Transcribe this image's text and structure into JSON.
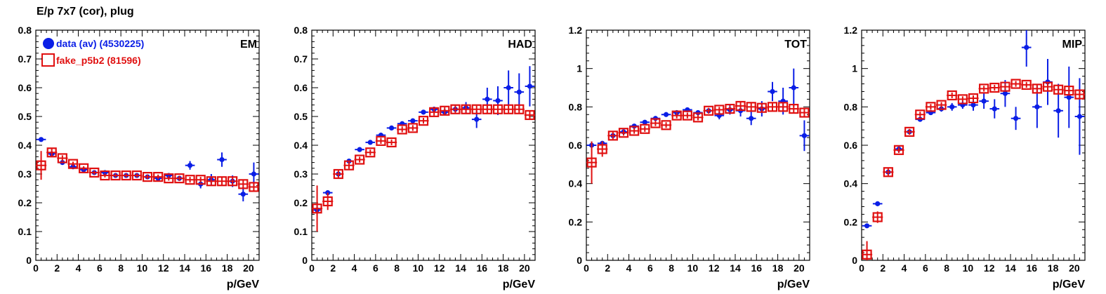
{
  "page": {
    "title": "E/p 7x7 (cor), plug"
  },
  "legend": {
    "entries": [
      {
        "label": "data (av) (4530225)",
        "color": "#0a1ee6",
        "marker": "filled-circle"
      },
      {
        "label": "fake_p5b2 (81596)",
        "color": "#e01010",
        "marker": "open-square"
      }
    ]
  },
  "chart_data": [
    {
      "type": "scatter",
      "title": "EM",
      "xlabel": "p/GeV",
      "ylabel": "",
      "xlim": [
        0,
        21
      ],
      "ylim": [
        0,
        0.8
      ],
      "xticks": [
        "0",
        "2",
        "4",
        "6",
        "8",
        "10",
        "12",
        "14",
        "16",
        "18",
        "20"
      ],
      "yticks": [
        "0",
        "0.1",
        "0.2",
        "0.3",
        "0.4",
        "0.5",
        "0.6",
        "0.7",
        "0.8"
      ],
      "series": [
        {
          "name": "data (av) (4530225)",
          "color": "#0a1ee6",
          "x": [
            0.5,
            1.5,
            2.5,
            3.5,
            4.5,
            5.5,
            6.5,
            7.5,
            8.5,
            9.5,
            10.5,
            11.5,
            12.5,
            13.5,
            14.5,
            15.5,
            16.5,
            17.5,
            18.5,
            19.5,
            20.5
          ],
          "y": [
            0.42,
            0.37,
            0.34,
            0.325,
            0.315,
            0.305,
            0.305,
            0.295,
            0.295,
            0.295,
            0.29,
            0.285,
            0.295,
            0.285,
            0.33,
            0.265,
            0.28,
            0.35,
            0.275,
            0.23,
            0.3
          ],
          "yerr": [
            0.005,
            0.005,
            0.004,
            0.004,
            0.004,
            0.004,
            0.004,
            0.004,
            0.004,
            0.005,
            0.005,
            0.005,
            0.006,
            0.007,
            0.015,
            0.015,
            0.02,
            0.025,
            0.02,
            0.025,
            0.04
          ]
        },
        {
          "name": "fake_p5b2 (81596)",
          "color": "#e01010",
          "x": [
            0.5,
            1.5,
            2.5,
            3.5,
            4.5,
            5.5,
            6.5,
            7.5,
            8.5,
            9.5,
            10.5,
            11.5,
            12.5,
            13.5,
            14.5,
            15.5,
            16.5,
            17.5,
            18.5,
            19.5,
            20.5
          ],
          "y": [
            0.33,
            0.375,
            0.355,
            0.335,
            0.32,
            0.305,
            0.295,
            0.295,
            0.295,
            0.295,
            0.29,
            0.29,
            0.285,
            0.285,
            0.28,
            0.28,
            0.275,
            0.275,
            0.275,
            0.265,
            0.255
          ],
          "yerr": [
            0.05,
            0.015,
            0.01,
            0.008,
            0.007,
            0.007,
            0.007,
            0.007,
            0.007,
            0.007,
            0.008,
            0.008,
            0.008,
            0.009,
            0.01,
            0.01,
            0.012,
            0.013,
            0.014,
            0.015,
            0.017
          ]
        }
      ]
    },
    {
      "type": "scatter",
      "title": "HAD",
      "xlabel": "p/GeV",
      "ylabel": "",
      "xlim": [
        0,
        21
      ],
      "ylim": [
        0,
        0.8
      ],
      "xticks": [
        "0",
        "2",
        "4",
        "6",
        "8",
        "10",
        "12",
        "14",
        "16",
        "18",
        "20"
      ],
      "yticks": [
        "0",
        "0.1",
        "0.2",
        "0.3",
        "0.4",
        "0.5",
        "0.6",
        "0.7",
        "0.8"
      ],
      "series": [
        {
          "name": "data (av) (4530225)",
          "color": "#0a1ee6",
          "x": [
            0.5,
            1.5,
            2.5,
            3.5,
            4.5,
            5.5,
            6.5,
            7.5,
            8.5,
            9.5,
            10.5,
            11.5,
            12.5,
            13.5,
            14.5,
            15.5,
            16.5,
            17.5,
            18.5,
            19.5,
            20.5
          ],
          "y": [
            0.175,
            0.235,
            0.3,
            0.345,
            0.385,
            0.41,
            0.435,
            0.46,
            0.475,
            0.485,
            0.515,
            0.525,
            0.515,
            0.525,
            0.53,
            0.49,
            0.56,
            0.555,
            0.6,
            0.585,
            0.605
          ],
          "yerr": [
            0.015,
            0.008,
            0.006,
            0.005,
            0.005,
            0.005,
            0.005,
            0.006,
            0.006,
            0.007,
            0.008,
            0.009,
            0.01,
            0.015,
            0.02,
            0.03,
            0.04,
            0.05,
            0.06,
            0.065,
            0.07
          ]
        },
        {
          "name": "fake_p5b2 (81596)",
          "color": "#e01010",
          "x": [
            0.5,
            1.5,
            2.5,
            3.5,
            4.5,
            5.5,
            6.5,
            7.5,
            8.5,
            9.5,
            10.5,
            11.5,
            12.5,
            13.5,
            14.5,
            15.5,
            16.5,
            17.5,
            18.5,
            19.5,
            20.5
          ],
          "y": [
            0.18,
            0.205,
            0.3,
            0.33,
            0.35,
            0.375,
            0.415,
            0.41,
            0.455,
            0.46,
            0.485,
            0.515,
            0.52,
            0.525,
            0.525,
            0.525,
            0.525,
            0.525,
            0.525,
            0.525,
            0.505
          ],
          "yerr": [
            0.08,
            0.03,
            0.015,
            0.012,
            0.01,
            0.01,
            0.01,
            0.01,
            0.01,
            0.01,
            0.01,
            0.012,
            0.012,
            0.012,
            0.012,
            0.012,
            0.014,
            0.014,
            0.014,
            0.014,
            0.015
          ]
        }
      ]
    },
    {
      "type": "scatter",
      "title": "TOT",
      "xlabel": "p/GeV",
      "ylabel": "",
      "xlim": [
        0,
        21
      ],
      "ylim": [
        0,
        1.2
      ],
      "xticks": [
        "0",
        "2",
        "4",
        "6",
        "8",
        "10",
        "12",
        "14",
        "16",
        "18",
        "20"
      ],
      "yticks": [
        "0",
        "0.2",
        "0.4",
        "0.6",
        "0.8",
        "1",
        "1.2"
      ],
      "series": [
        {
          "name": "data (av) (4530225)",
          "color": "#0a1ee6",
          "x": [
            0.5,
            1.5,
            2.5,
            3.5,
            4.5,
            5.5,
            6.5,
            7.5,
            8.5,
            9.5,
            10.5,
            11.5,
            12.5,
            13.5,
            14.5,
            15.5,
            16.5,
            17.5,
            18.5,
            19.5,
            20.5
          ],
          "y": [
            0.6,
            0.61,
            0.65,
            0.67,
            0.7,
            0.72,
            0.74,
            0.76,
            0.77,
            0.785,
            0.77,
            0.78,
            0.755,
            0.785,
            0.78,
            0.74,
            0.79,
            0.88,
            0.83,
            0.9,
            0.65
          ],
          "yerr": [
            0.01,
            0.008,
            0.006,
            0.006,
            0.006,
            0.006,
            0.006,
            0.007,
            0.008,
            0.009,
            0.01,
            0.012,
            0.02,
            0.025,
            0.03,
            0.035,
            0.04,
            0.05,
            0.07,
            0.1,
            0.08
          ]
        },
        {
          "name": "fake_p5b2 (81596)",
          "color": "#e01010",
          "x": [
            0.5,
            1.5,
            2.5,
            3.5,
            4.5,
            5.5,
            6.5,
            7.5,
            8.5,
            9.5,
            10.5,
            11.5,
            12.5,
            13.5,
            14.5,
            15.5,
            16.5,
            17.5,
            18.5,
            19.5,
            20.5
          ],
          "y": [
            0.51,
            0.58,
            0.65,
            0.665,
            0.675,
            0.685,
            0.715,
            0.705,
            0.755,
            0.755,
            0.745,
            0.78,
            0.785,
            0.79,
            0.805,
            0.8,
            0.795,
            0.8,
            0.8,
            0.79,
            0.77
          ],
          "yerr": [
            0.11,
            0.04,
            0.02,
            0.015,
            0.015,
            0.015,
            0.015,
            0.015,
            0.015,
            0.015,
            0.015,
            0.015,
            0.015,
            0.015,
            0.02,
            0.02,
            0.02,
            0.02,
            0.02,
            0.02,
            0.02
          ]
        }
      ]
    },
    {
      "type": "scatter",
      "title": "MIP",
      "xlabel": "p/GeV",
      "ylabel": "",
      "xlim": [
        0,
        21
      ],
      "ylim": [
        0,
        1.2
      ],
      "xticks": [
        "0",
        "2",
        "4",
        "6",
        "8",
        "10",
        "12",
        "14",
        "16",
        "18",
        "20"
      ],
      "yticks": [
        "0",
        "0.2",
        "0.4",
        "0.6",
        "0.8",
        "1",
        "1.2"
      ],
      "series": [
        {
          "name": "data (av) (4530225)",
          "color": "#0a1ee6",
          "x": [
            0.5,
            1.5,
            2.5,
            3.5,
            4.5,
            5.5,
            6.5,
            7.5,
            8.5,
            9.5,
            10.5,
            11.5,
            12.5,
            13.5,
            14.5,
            15.5,
            16.5,
            17.5,
            18.5,
            19.5,
            20.5
          ],
          "y": [
            0.18,
            0.295,
            0.46,
            0.58,
            0.67,
            0.735,
            0.77,
            0.79,
            0.8,
            0.81,
            0.81,
            0.83,
            0.79,
            0.87,
            0.74,
            1.11,
            0.8,
            0.93,
            0.78,
            0.85,
            0.75
          ],
          "yerr": [
            0.005,
            0.005,
            0.01,
            0.01,
            0.01,
            0.01,
            0.012,
            0.015,
            0.02,
            0.02,
            0.03,
            0.04,
            0.05,
            0.07,
            0.06,
            0.1,
            0.11,
            0.12,
            0.14,
            0.16,
            0.2
          ]
        },
        {
          "name": "fake_p5b2 (81596)",
          "color": "#e01010",
          "x": [
            0.5,
            1.5,
            2.5,
            3.5,
            4.5,
            5.5,
            6.5,
            7.5,
            8.5,
            9.5,
            10.5,
            11.5,
            12.5,
            13.5,
            14.5,
            15.5,
            16.5,
            17.5,
            18.5,
            19.5,
            20.5
          ],
          "y": [
            0.03,
            0.225,
            0.46,
            0.575,
            0.67,
            0.76,
            0.8,
            0.81,
            0.86,
            0.84,
            0.845,
            0.895,
            0.9,
            0.905,
            0.92,
            0.915,
            0.895,
            0.905,
            0.89,
            0.885,
            0.865
          ],
          "yerr": [
            0.07,
            0.03,
            0.02,
            0.015,
            0.015,
            0.015,
            0.015,
            0.015,
            0.015,
            0.015,
            0.015,
            0.015,
            0.015,
            0.015,
            0.015,
            0.015,
            0.02,
            0.02,
            0.02,
            0.02,
            0.02
          ]
        }
      ]
    }
  ]
}
